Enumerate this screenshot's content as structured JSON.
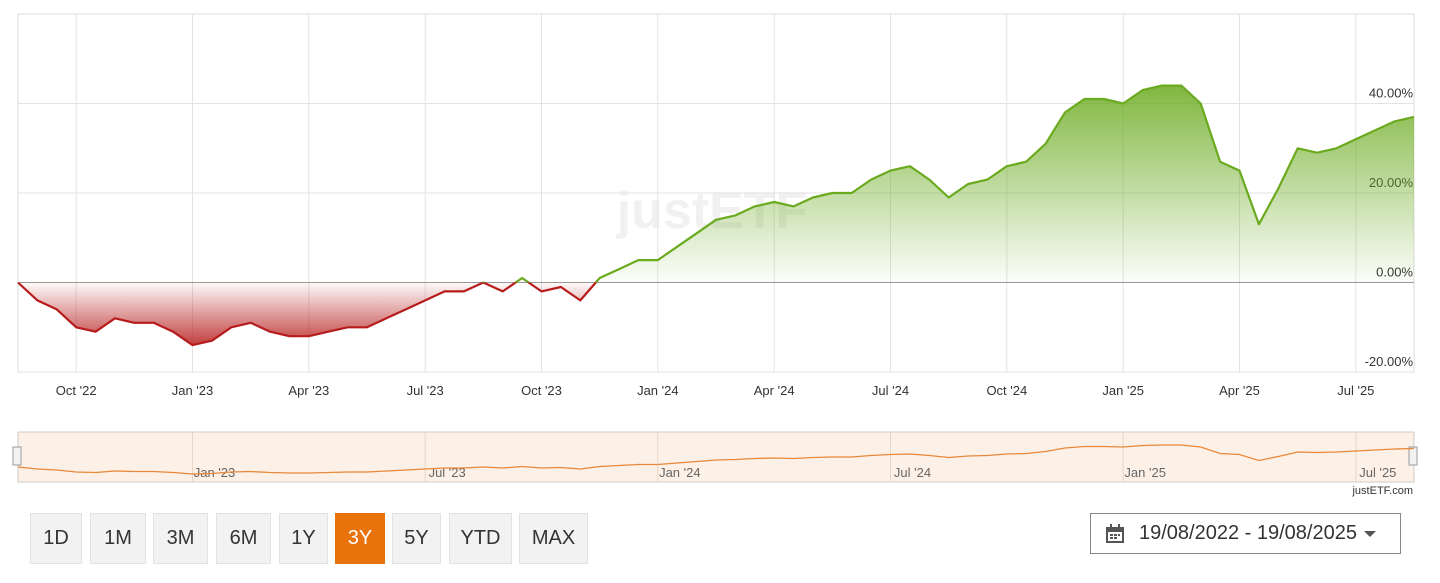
{
  "chart_data": {
    "type": "line",
    "categories": [
      null,
      null,
      null,
      "Oct '22",
      null,
      null,
      null,
      null,
      null,
      "Jan '23",
      null,
      null,
      null,
      null,
      null,
      "Apr '23",
      null,
      null,
      null,
      null,
      null,
      "Jul '23",
      null,
      null,
      null,
      null,
      null,
      "Oct '23",
      null,
      null,
      null,
      null,
      null,
      "Jan '24",
      null,
      null,
      null,
      null,
      null,
      "Apr '24",
      null,
      null,
      null,
      null,
      null,
      "Jul '24",
      null,
      null,
      null,
      null,
      null,
      "Oct '24",
      null,
      null,
      null,
      null,
      null,
      "Jan '25",
      null,
      null,
      null,
      null,
      null,
      "Apr '25",
      null,
      null,
      null,
      null,
      null,
      "Jul '25",
      null,
      null,
      null
    ],
    "values": [
      0,
      -4,
      -6,
      -10,
      -11,
      -8,
      -9,
      -9,
      -11,
      -14,
      -13,
      -10,
      -9,
      -11,
      -12,
      -12,
      -11,
      -10,
      -10,
      -8,
      -6,
      -4,
      -2,
      -2,
      0,
      -2,
      1,
      -2,
      -1,
      -4,
      1,
      3,
      5,
      5,
      8,
      11,
      14,
      15,
      17,
      18,
      17,
      19,
      20,
      20,
      23,
      25,
      26,
      23,
      19,
      22,
      23,
      26,
      27,
      31,
      38,
      41,
      41,
      40,
      43,
      44,
      44,
      40,
      27,
      25,
      13,
      21,
      30,
      29,
      30,
      32,
      34,
      36,
      37
    ],
    "colors": {
      "above": "#6aaa1e",
      "below": "#b71c1c",
      "navigator": "#e8883a"
    },
    "ylim": [
      -20,
      60
    ],
    "yticks": [
      {
        "value": -20,
        "label": "-20.00%"
      },
      {
        "value": 0,
        "label": "0.00%"
      },
      {
        "value": 20,
        "label": "20.00%"
      },
      {
        "value": 40,
        "label": "40.00%"
      }
    ],
    "grid": true,
    "watermark": "justETF"
  },
  "navigator": {
    "labels": [
      "Jan '23",
      "Jul '23",
      "Jan '24",
      "Jul '24",
      "Jan '25",
      "Jul '25"
    ]
  },
  "source": "justETF.com",
  "range_buttons": {
    "items": [
      "1D",
      "1M",
      "3M",
      "6M",
      "1Y",
      "3Y",
      "5Y",
      "YTD",
      "MAX"
    ],
    "active": 5
  },
  "date_range": "19/08/2022 - 19/08/2025"
}
